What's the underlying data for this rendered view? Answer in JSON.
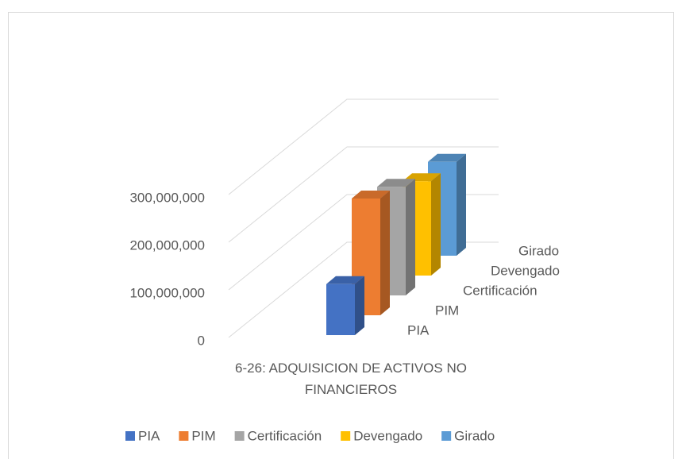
{
  "chart_data": {
    "type": "bar3d",
    "categories": [
      "6-26: ADQUISICION DE ACTIVOS NO FINANCIEROS"
    ],
    "series": [
      {
        "name": "PIA",
        "color": "#4472c4",
        "values": [
          107000000
        ]
      },
      {
        "name": "PIM",
        "color": "#ed7d31",
        "values": [
          245000000
        ]
      },
      {
        "name": "Certificación",
        "color": "#a5a5a5",
        "values": [
          228000000
        ]
      },
      {
        "name": "Devengado",
        "color": "#ffc000",
        "values": [
          198000000
        ]
      },
      {
        "name": "Girado",
        "color": "#5b9bd5",
        "values": [
          197000000
        ]
      }
    ],
    "ylim": [
      0,
      400000000
    ],
    "yticks": [
      0,
      {
        "value": 100000000,
        "label": "100,000,000"
      },
      {
        "value": 200000000,
        "label": "200,000,000"
      },
      {
        "value": 300000000,
        "label": "300,000,000"
      }
    ],
    "grid": true,
    "legend": "bottom"
  }
}
